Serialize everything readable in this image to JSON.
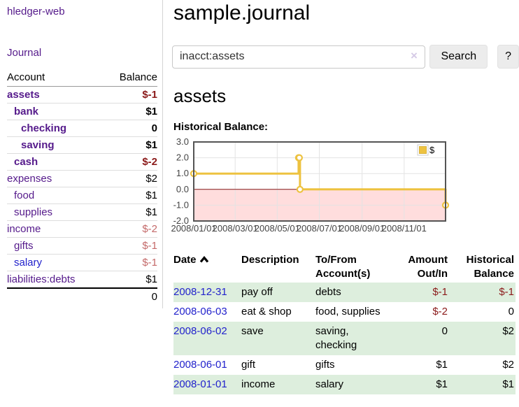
{
  "colors": {
    "link_visited": "#551a8b",
    "link_unvisited": "#2222cc",
    "negative": "#8b1a1a",
    "negative_muted": "#c46a6a",
    "row_stripe_green": "#ddeedd",
    "series_gold": "#edc240"
  },
  "sidebar": {
    "app_title": "hledger-web",
    "nav_journal": "Journal",
    "accounts_table": {
      "headers": [
        "Account",
        "Balance"
      ],
      "rows": [
        {
          "account": "assets",
          "depth": 1,
          "bold": true,
          "link": "visited",
          "balance": "$-1",
          "balance_cls": "neg"
        },
        {
          "account": "bank",
          "depth": 2,
          "bold": true,
          "link": "visited",
          "balance": "$1",
          "balance_cls": ""
        },
        {
          "account": "checking",
          "depth": 3,
          "bold": true,
          "link": "visited",
          "balance": "0",
          "balance_cls": ""
        },
        {
          "account": "saving",
          "depth": 3,
          "bold": true,
          "link": "visited",
          "balance": "$1",
          "balance_cls": ""
        },
        {
          "account": "cash",
          "depth": 2,
          "bold": true,
          "link": "visited",
          "balance": "$-2",
          "balance_cls": "neg"
        },
        {
          "account": "expenses",
          "depth": 1,
          "bold": false,
          "link": "visited",
          "balance": "$2",
          "balance_cls": ""
        },
        {
          "account": "food",
          "depth": 2,
          "bold": false,
          "link": "visited",
          "balance": "$1",
          "balance_cls": ""
        },
        {
          "account": "supplies",
          "depth": 2,
          "bold": false,
          "link": "visited",
          "balance": "$1",
          "balance_cls": ""
        },
        {
          "account": "income",
          "depth": 1,
          "bold": false,
          "link": "visited",
          "balance": "$-2",
          "balance_cls": "negmuted"
        },
        {
          "account": "gifts",
          "depth": 2,
          "bold": false,
          "link": "visited",
          "balance": "$-1",
          "balance_cls": "negmuted"
        },
        {
          "account": "salary",
          "depth": 2,
          "bold": false,
          "link": "unvisited",
          "balance": "$-1",
          "balance_cls": "negmuted"
        },
        {
          "account": "liabilities:debts",
          "depth": 1,
          "bold": false,
          "link": "visited",
          "balance": "$1",
          "balance_cls": ""
        }
      ],
      "total": "0"
    }
  },
  "main": {
    "title": "sample.journal",
    "search": {
      "value": "inacct:assets",
      "clear_icon": "×",
      "search_label": "Search",
      "help_label": "?"
    },
    "account_heading": "assets",
    "chart_label": "Historical Balance:"
  },
  "register": {
    "headers": [
      "Date",
      "Description",
      "To/From Account(s)",
      "Amount Out/In",
      "Historical Balance"
    ],
    "rows": [
      {
        "date": "2008-12-31",
        "description": "pay off",
        "accounts": "debts",
        "amount": "$-1",
        "amount_cls": "neg",
        "balance": "$-1",
        "balance_cls": "neg"
      },
      {
        "date": "2008-06-03",
        "description": "eat & shop",
        "accounts": "food, supplies",
        "amount": "$-2",
        "amount_cls": "neg",
        "balance": "0",
        "balance_cls": ""
      },
      {
        "date": "2008-06-02",
        "description": "save",
        "accounts": "saving, checking",
        "amount": "0",
        "amount_cls": "",
        "balance": "$2",
        "balance_cls": ""
      },
      {
        "date": "2008-06-01",
        "description": "gift",
        "accounts": "gifts",
        "amount": "$1",
        "amount_cls": "",
        "balance": "$2",
        "balance_cls": ""
      },
      {
        "date": "2008-01-01",
        "description": "income",
        "accounts": "salary",
        "amount": "$1",
        "amount_cls": "",
        "balance": "$1",
        "balance_cls": ""
      }
    ]
  },
  "chart_data": {
    "type": "line",
    "step": true,
    "title": "Historical Balance",
    "series": [
      {
        "name": "$",
        "color": "#edc240",
        "points": [
          [
            "2008-01-01",
            1
          ],
          [
            "2008-06-01",
            2
          ],
          [
            "2008-06-02",
            2
          ],
          [
            "2008-06-03",
            0
          ],
          [
            "2008-12-31",
            -1
          ]
        ]
      }
    ],
    "xlim": [
      "2008-01-01",
      "2008-12-31"
    ],
    "ylim": [
      -2,
      3
    ],
    "x_ticks": [
      "2008/01/01",
      "2008/03/01",
      "2008/05/01",
      "2008/07/01",
      "2008/09/01",
      "2008/11/01"
    ],
    "y_ticks": [
      "3.0",
      "2.0",
      "1.0",
      "0.0",
      "-1.0",
      "-2.0"
    ],
    "grid": true,
    "legend_position": "top-right",
    "negative_region_fill": "#ffdddd",
    "zero_line_color": "#8b1a1a",
    "plot_border_color": "#545454",
    "grid_color": "#e3e3e3"
  }
}
